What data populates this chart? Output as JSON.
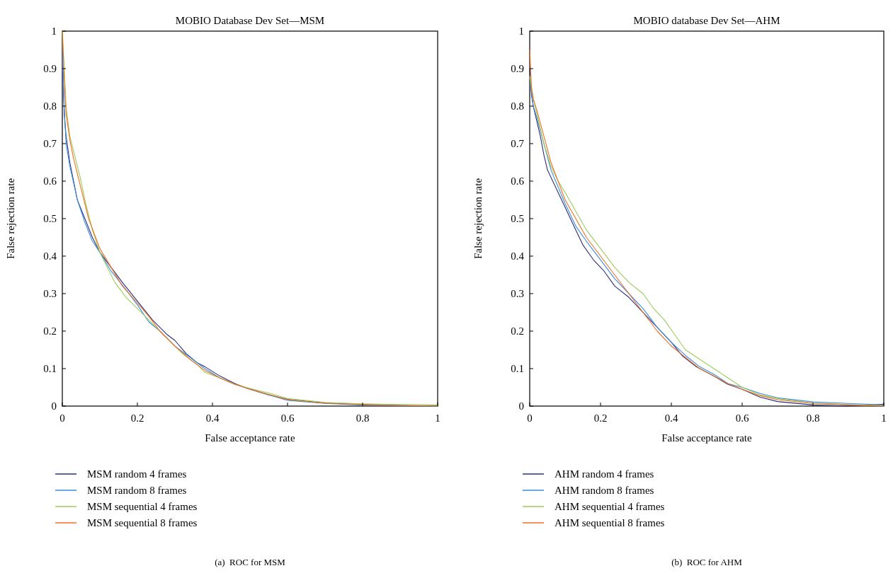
{
  "chart_data": [
    {
      "type": "line",
      "title": "MOBIO Database Dev Set—MSM",
      "xlabel": "False acceptance rate",
      "ylabel": "False rejection rate",
      "xlim": [
        0,
        1
      ],
      "ylim": [
        0,
        1
      ],
      "xticks": [
        0,
        0.2,
        0.4,
        0.6,
        0.8,
        1
      ],
      "yticks": [
        0,
        0.1,
        0.2,
        0.3,
        0.4,
        0.5,
        0.6,
        0.7,
        0.8,
        0.9,
        1
      ],
      "grid": false,
      "legend": "bottom",
      "marker": "none",
      "line_style": "solid",
      "annotations": [
        "(a)  ROC for MSM"
      ],
      "series": [
        {
          "name": "MSM random 4 frames",
          "color": "#2b2f7a",
          "x": [
            0,
            0.005,
            0.01,
            0.02,
            0.03,
            0.04,
            0.06,
            0.08,
            0.1,
            0.13,
            0.16,
            0.2,
            0.24,
            0.28,
            0.3,
            0.33,
            0.36,
            0.38,
            0.42,
            0.46,
            0.5,
            0.55,
            0.6,
            0.7,
            0.8,
            0.9,
            1
          ],
          "values": [
            0.95,
            0.78,
            0.72,
            0.65,
            0.6,
            0.55,
            0.5,
            0.45,
            0.41,
            0.37,
            0.33,
            0.28,
            0.23,
            0.19,
            0.175,
            0.14,
            0.115,
            0.105,
            0.08,
            0.06,
            0.045,
            0.03,
            0.018,
            0.008,
            0.004,
            0.002,
            0
          ]
        },
        {
          "name": "MSM random 8 frames",
          "color": "#3a8ee0",
          "x": [
            0,
            0.005,
            0.01,
            0.02,
            0.04,
            0.06,
            0.08,
            0.1,
            0.13,
            0.17,
            0.2,
            0.23,
            0.26,
            0.3,
            0.34,
            0.38,
            0.42,
            0.46,
            0.5,
            0.6,
            0.7,
            0.8,
            0.9,
            1
          ],
          "values": [
            0.95,
            0.8,
            0.7,
            0.64,
            0.55,
            0.49,
            0.44,
            0.41,
            0.36,
            0.31,
            0.27,
            0.225,
            0.2,
            0.16,
            0.13,
            0.1,
            0.075,
            0.058,
            0.045,
            0.015,
            0.007,
            0.003,
            0.001,
            0
          ]
        },
        {
          "name": "MSM sequential 4 frames",
          "color": "#9ccc5a",
          "x": [
            0,
            0.005,
            0.01,
            0.02,
            0.03,
            0.05,
            0.06,
            0.08,
            0.1,
            0.12,
            0.14,
            0.17,
            0.2,
            0.24,
            0.28,
            0.32,
            0.36,
            0.38,
            0.42,
            0.46,
            0.5,
            0.55,
            0.6,
            0.7,
            0.8,
            0.9,
            1
          ],
          "values": [
            1,
            0.9,
            0.8,
            0.72,
            0.68,
            0.6,
            0.55,
            0.47,
            0.41,
            0.37,
            0.33,
            0.29,
            0.26,
            0.22,
            0.18,
            0.14,
            0.11,
            0.09,
            0.075,
            0.058,
            0.047,
            0.035,
            0.02,
            0.01,
            0.006,
            0.004,
            0.003
          ]
        },
        {
          "name": "MSM sequential 8 frames",
          "color": "#f07020",
          "x": [
            0,
            0.005,
            0.01,
            0.02,
            0.03,
            0.05,
            0.07,
            0.1,
            0.13,
            0.16,
            0.2,
            0.23,
            0.26,
            0.3,
            0.34,
            0.38,
            0.42,
            0.46,
            0.5,
            0.6,
            0.7,
            0.8,
            0.9,
            1
          ],
          "values": [
            1,
            0.88,
            0.78,
            0.71,
            0.66,
            0.58,
            0.5,
            0.42,
            0.37,
            0.32,
            0.275,
            0.24,
            0.2,
            0.16,
            0.125,
            0.095,
            0.075,
            0.058,
            0.045,
            0.017,
            0.008,
            0.004,
            0.002,
            0
          ]
        }
      ]
    },
    {
      "type": "line",
      "title": "MOBIO database Dev Set—AHM",
      "xlabel": "False acceptance rate",
      "ylabel": "False rejection rate",
      "xlim": [
        0,
        1
      ],
      "ylim": [
        0,
        1
      ],
      "xticks": [
        0,
        0.2,
        0.4,
        0.6,
        0.8,
        1
      ],
      "yticks": [
        0,
        0.1,
        0.2,
        0.3,
        0.4,
        0.5,
        0.6,
        0.7,
        0.8,
        0.9,
        1
      ],
      "grid": false,
      "legend": "bottom",
      "marker": "none",
      "line_style": "solid",
      "annotations": [
        "(b)  ROC for AHM"
      ],
      "series": [
        {
          "name": "AHM random 4 frames",
          "color": "#2b2f7a",
          "x": [
            0,
            0.005,
            0.01,
            0.02,
            0.03,
            0.04,
            0.05,
            0.07,
            0.1,
            0.13,
            0.15,
            0.18,
            0.21,
            0.24,
            0.28,
            0.3,
            0.33,
            0.36,
            0.4,
            0.43,
            0.47,
            0.52,
            0.56,
            0.6,
            0.65,
            0.7,
            0.8,
            0.9,
            1
          ],
          "values": [
            0.9,
            0.83,
            0.8,
            0.76,
            0.72,
            0.67,
            0.63,
            0.59,
            0.53,
            0.47,
            0.43,
            0.39,
            0.36,
            0.32,
            0.29,
            0.27,
            0.24,
            0.21,
            0.17,
            0.135,
            0.105,
            0.08,
            0.058,
            0.045,
            0.024,
            0.012,
            0.003,
            0.0,
            0.005
          ]
        },
        {
          "name": "AHM random 8 frames",
          "color": "#3a8ee0",
          "x": [
            0,
            0.01,
            0.02,
            0.04,
            0.06,
            0.1,
            0.13,
            0.16,
            0.2,
            0.24,
            0.28,
            0.32,
            0.36,
            0.4,
            0.44,
            0.48,
            0.52,
            0.56,
            0.6,
            0.65,
            0.7,
            0.8,
            0.9,
            1
          ],
          "values": [
            0.88,
            0.8,
            0.77,
            0.7,
            0.63,
            0.54,
            0.48,
            0.44,
            0.39,
            0.34,
            0.3,
            0.26,
            0.21,
            0.17,
            0.135,
            0.105,
            0.085,
            0.06,
            0.05,
            0.034,
            0.022,
            0.011,
            0.007,
            0.003
          ]
        },
        {
          "name": "AHM sequential 4 frames",
          "color": "#9ccc5a",
          "x": [
            0,
            0.01,
            0.02,
            0.04,
            0.06,
            0.08,
            0.1,
            0.13,
            0.16,
            0.2,
            0.24,
            0.28,
            0.32,
            0.35,
            0.38,
            0.41,
            0.44,
            0.48,
            0.52,
            0.56,
            0.6,
            0.65,
            0.7,
            0.8,
            0.9,
            1
          ],
          "values": [
            0.88,
            0.82,
            0.78,
            0.7,
            0.64,
            0.6,
            0.57,
            0.52,
            0.47,
            0.42,
            0.37,
            0.33,
            0.3,
            0.26,
            0.23,
            0.19,
            0.15,
            0.125,
            0.1,
            0.075,
            0.05,
            0.03,
            0.02,
            0.008,
            0.004,
            0.001
          ]
        },
        {
          "name": "AHM sequential 8 frames",
          "color": "#f07020",
          "x": [
            0,
            0.005,
            0.01,
            0.02,
            0.04,
            0.06,
            0.1,
            0.13,
            0.16,
            0.2,
            0.24,
            0.28,
            0.32,
            0.36,
            0.4,
            0.44,
            0.48,
            0.52,
            0.56,
            0.6,
            0.65,
            0.7,
            0.8,
            0.9,
            1
          ],
          "values": [
            0.95,
            0.85,
            0.82,
            0.79,
            0.72,
            0.65,
            0.55,
            0.5,
            0.45,
            0.4,
            0.35,
            0.3,
            0.25,
            0.2,
            0.16,
            0.13,
            0.1,
            0.08,
            0.06,
            0.045,
            0.028,
            0.017,
            0.007,
            0.003,
            0
          ]
        }
      ]
    }
  ]
}
